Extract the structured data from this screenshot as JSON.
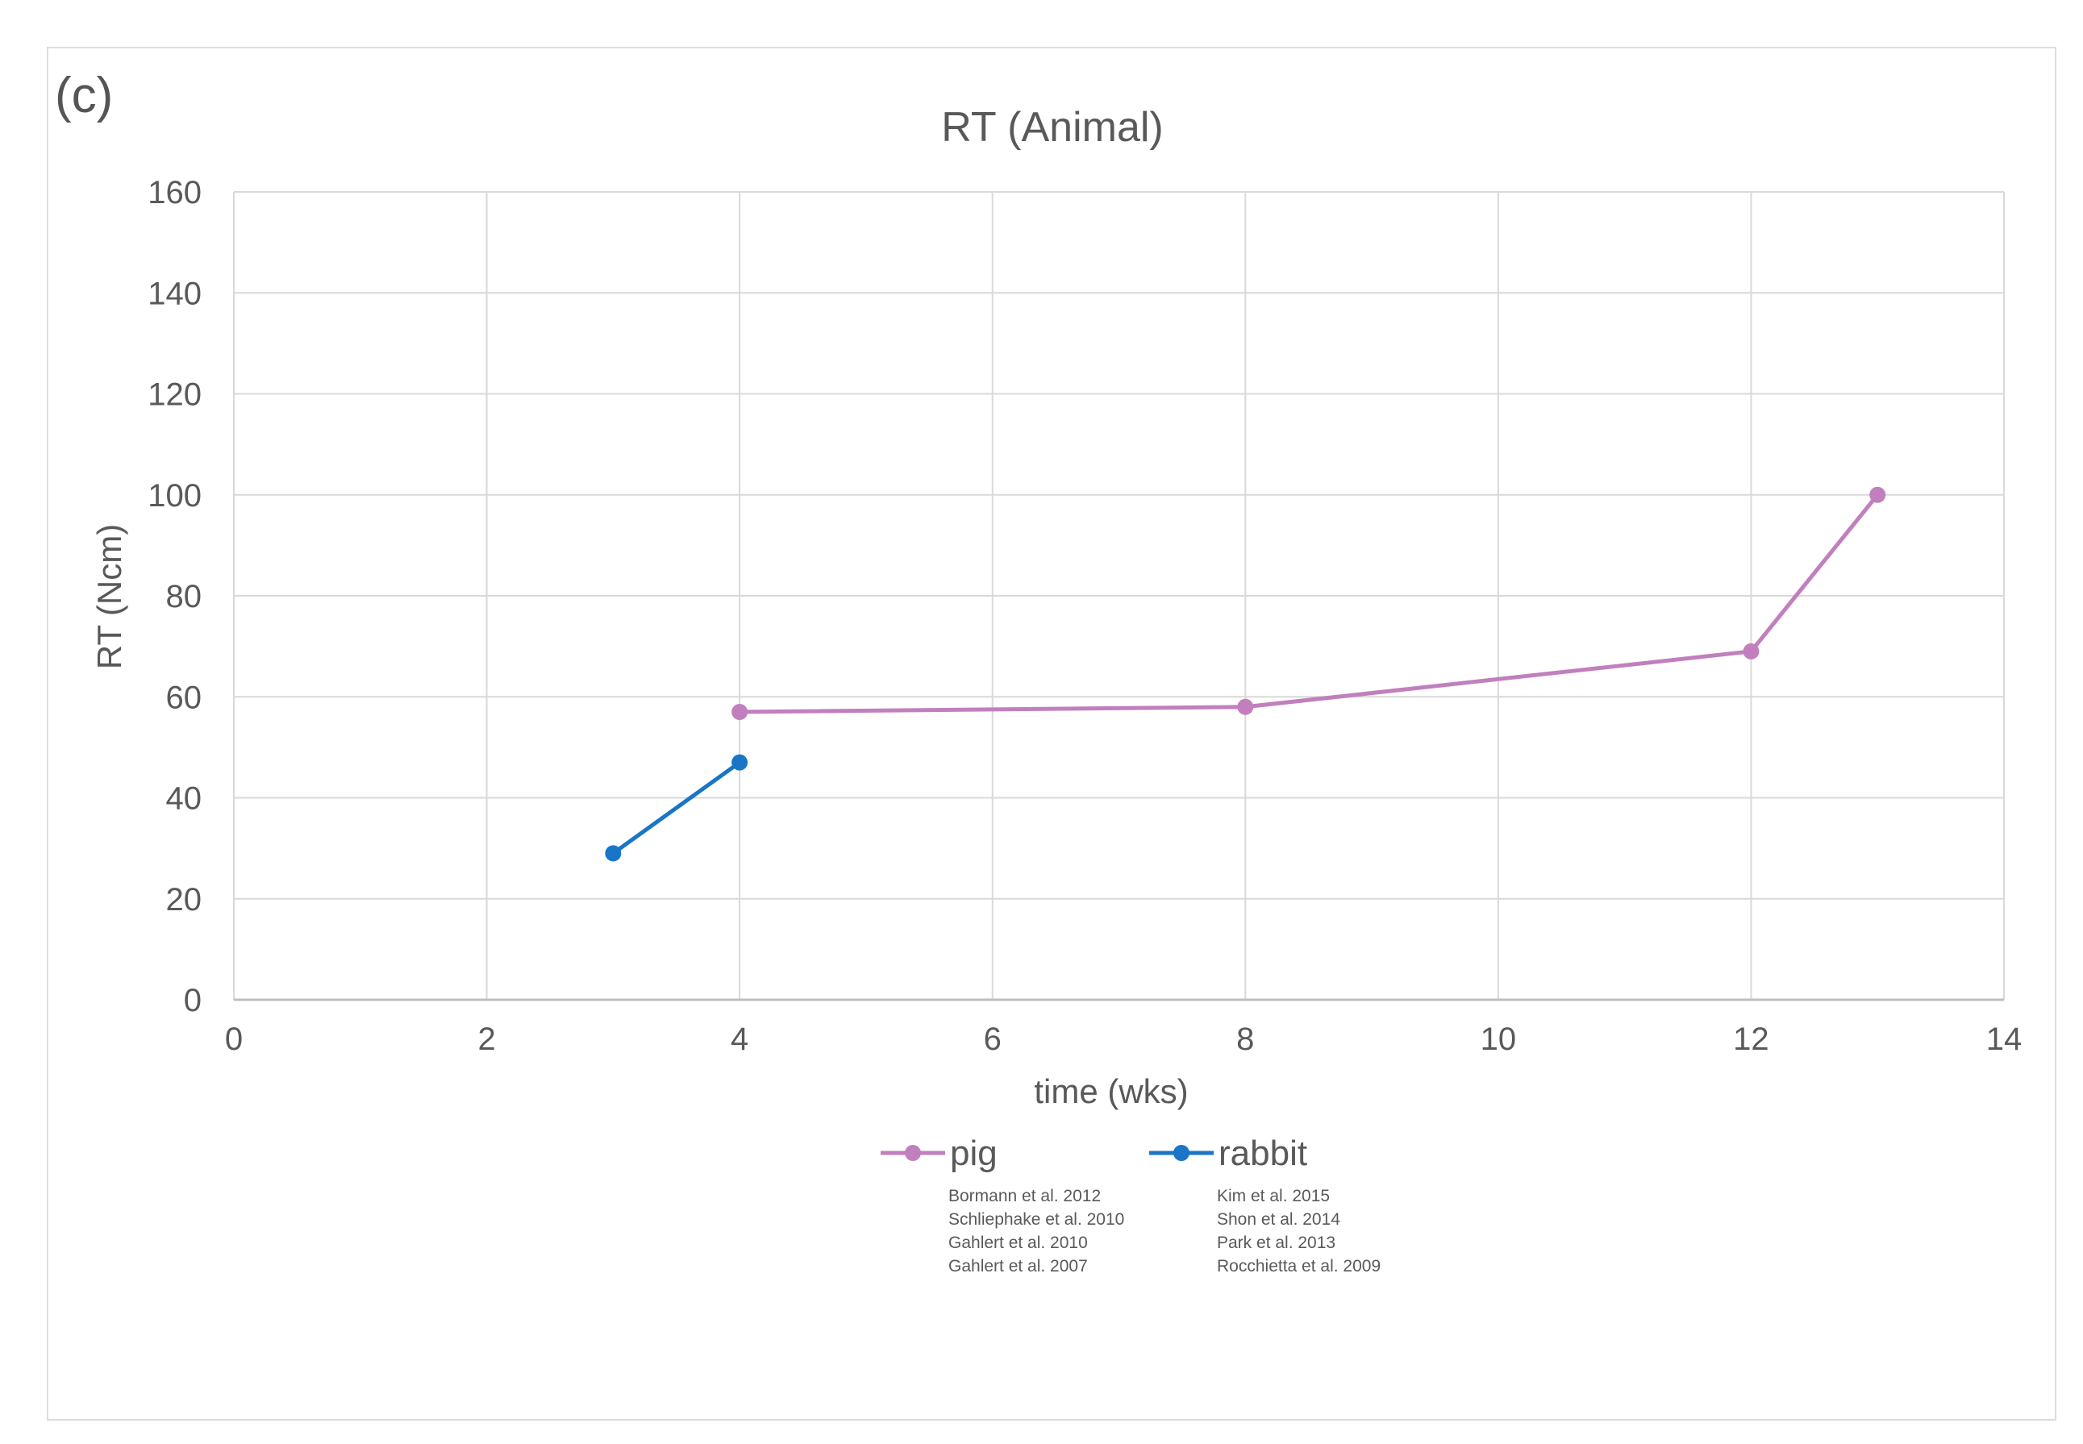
{
  "panel_label": "(c)",
  "chart_data": {
    "type": "line",
    "title": "RT (Animal)",
    "xlabel": "time (wks)",
    "ylabel": "RT (Ncm)",
    "xlim": [
      0,
      14
    ],
    "ylim": [
      0,
      160
    ],
    "xticks": [
      "0",
      "2",
      "4",
      "6",
      "8",
      "10",
      "12",
      "14"
    ],
    "yticks": [
      "0",
      "20",
      "40",
      "60",
      "80",
      "100",
      "120",
      "140",
      "160"
    ],
    "grid": true,
    "legend_position": "bottom",
    "series": [
      {
        "name": "pig",
        "color": "#c27fbd",
        "points": [
          {
            "x": 4,
            "y": 57
          },
          {
            "x": 8,
            "y": 58
          },
          {
            "x": 12,
            "y": 69
          },
          {
            "x": 13,
            "y": 100
          }
        ],
        "references": [
          "Bormann et al. 2012",
          "Schliephake et al. 2010",
          "Gahlert et al. 2010",
          "Gahlert et al. 2007"
        ]
      },
      {
        "name": "rabbit",
        "color": "#1a75c7",
        "points": [
          {
            "x": 3,
            "y": 29
          },
          {
            "x": 4,
            "y": 47
          }
        ],
        "references": [
          "Kim et al. 2015",
          "Shon et al. 2014",
          "Park et al. 2013",
          "Rocchietta et al. 2009"
        ]
      }
    ]
  }
}
